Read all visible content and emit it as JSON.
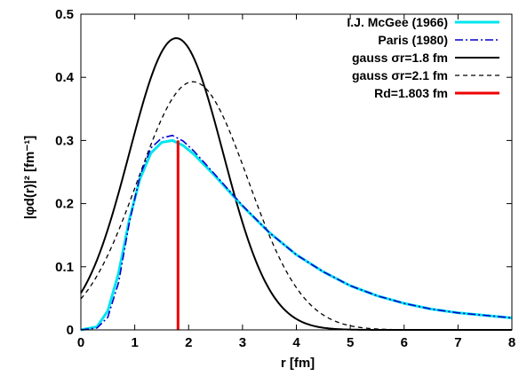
{
  "chart_data": {
    "type": "line",
    "xlabel": "r [fm]",
    "ylabel": "|φd(r)|² [fm⁻¹]",
    "xlim": [
      0,
      8
    ],
    "ylim": [
      0,
      0.5
    ],
    "x_ticks": [
      "0",
      "1",
      "2",
      "3",
      "4",
      "5",
      "6",
      "7",
      "8"
    ],
    "y_ticks": [
      "0",
      "0.1",
      "0.2",
      "0.3",
      "0.4",
      "0.5"
    ],
    "grid": false,
    "legend_position": "top-right",
    "series": [
      {
        "name": "I.J. McGee (1966)",
        "color": "#00e5ee",
        "style": "solid-thick",
        "x": [
          0,
          0.3,
          0.5,
          0.7,
          0.9,
          1.1,
          1.3,
          1.5,
          1.7,
          1.9,
          2.1,
          2.5,
          3.0,
          3.5,
          4.0,
          4.5,
          5.0,
          5.5,
          6.0,
          6.5,
          7.0,
          7.5,
          8.0
        ],
        "y": [
          0,
          0.005,
          0.03,
          0.09,
          0.175,
          0.24,
          0.28,
          0.297,
          0.3,
          0.292,
          0.278,
          0.243,
          0.196,
          0.154,
          0.119,
          0.092,
          0.07,
          0.054,
          0.042,
          0.033,
          0.027,
          0.023,
          0.019
        ]
      },
      {
        "name": "Paris (1980)",
        "color": "#0000cc",
        "style": "dashdot",
        "x": [
          0,
          0.3,
          0.5,
          0.7,
          0.9,
          1.1,
          1.3,
          1.5,
          1.7,
          1.9,
          2.1,
          2.5,
          3.0,
          3.5,
          4.0,
          4.5,
          5.0,
          5.5,
          6.0,
          6.5,
          7.0,
          7.5,
          8.0
        ],
        "y": [
          0,
          0.003,
          0.02,
          0.075,
          0.17,
          0.245,
          0.288,
          0.304,
          0.308,
          0.299,
          0.283,
          0.245,
          0.197,
          0.154,
          0.119,
          0.092,
          0.07,
          0.054,
          0.042,
          0.033,
          0.027,
          0.023,
          0.019
        ]
      },
      {
        "name": "gauss σr=1.8 fm",
        "color": "#000000",
        "style": "solid",
        "gauss": {
          "mu": 1.77,
          "sigma": 0.87,
          "peak": 0.462
        }
      },
      {
        "name": "gauss σr=2.1 fm",
        "color": "#000000",
        "style": "dashed",
        "gauss": {
          "mu": 2.08,
          "sigma": 1.02,
          "peak": 0.393
        }
      },
      {
        "name": "Rd=1.803 fm",
        "color": "#ee0000",
        "style": "vertical",
        "x": [
          1.803,
          1.803
        ],
        "y": [
          0,
          0.3
        ]
      }
    ]
  }
}
